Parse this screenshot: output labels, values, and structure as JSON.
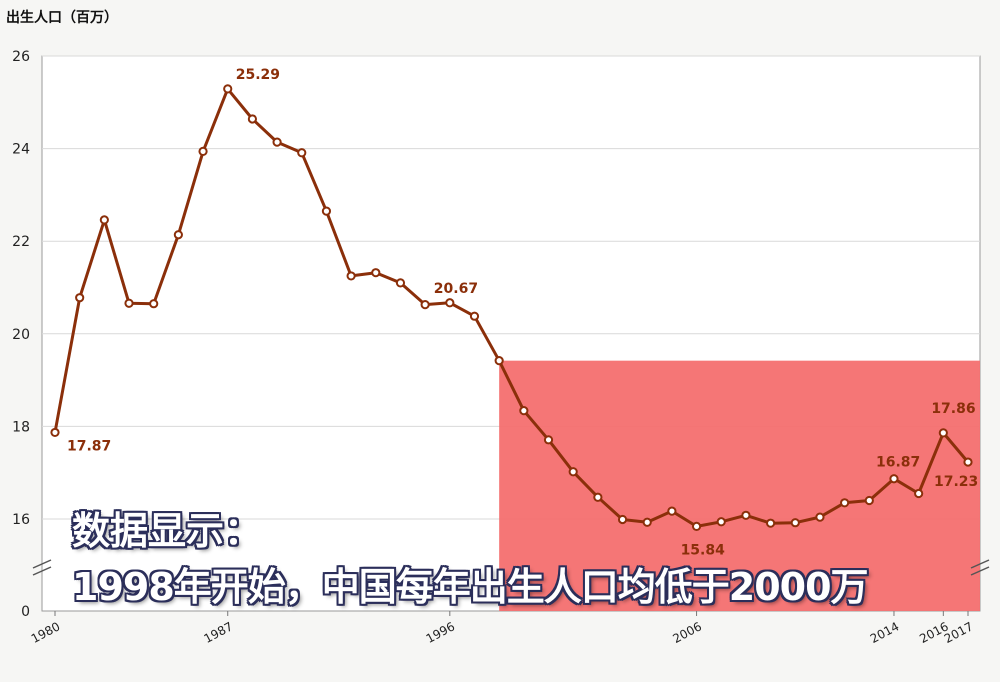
{
  "chart_data": {
    "type": "line",
    "ylabel": "出生人口（百万）",
    "xlabel": "",
    "x": [
      1980,
      1981,
      1982,
      1983,
      1984,
      1985,
      1986,
      1987,
      1988,
      1989,
      1990,
      1991,
      1992,
      1993,
      1994,
      1995,
      1996,
      1997,
      1998,
      1999,
      2000,
      2001,
      2002,
      2003,
      2004,
      2005,
      2006,
      2007,
      2008,
      2009,
      2010,
      2011,
      2012,
      2013,
      2014,
      2015,
      2016,
      2017
    ],
    "series": [
      {
        "values": [
          17.87,
          20.78,
          22.46,
          20.66,
          20.65,
          22.14,
          23.94,
          25.29,
          24.64,
          24.14,
          23.91,
          22.65,
          21.25,
          21.32,
          21.1,
          20.63,
          20.67,
          20.38,
          19.42,
          18.34,
          17.71,
          17.02,
          16.47,
          15.99,
          15.93,
          16.17,
          15.84,
          15.94,
          16.08,
          15.91,
          15.92,
          16.04,
          16.35,
          16.4,
          16.87,
          16.55,
          17.86,
          17.23
        ],
        "color": "#8b2f0a"
      }
    ],
    "x_ticks": [
      "1980",
      "1987",
      "1996",
      "2006",
      "2014",
      "2016",
      "2017"
    ],
    "y_ticks": [
      "0",
      "16",
      "18",
      "20",
      "22",
      "24",
      "26"
    ],
    "ylim": [
      16,
      26
    ],
    "y_axis_break": true,
    "point_labels": [
      {
        "x": 1980,
        "label": "17.87"
      },
      {
        "x": 1987,
        "label": "25.29"
      },
      {
        "x": 1996,
        "label": "20.67"
      },
      {
        "x": 2006,
        "label": "15.84"
      },
      {
        "x": 2014,
        "label": "16.87"
      },
      {
        "x": 2016,
        "label": "17.86"
      },
      {
        "x": 2017,
        "label": "17.23"
      }
    ],
    "highlight": {
      "x_start": 1998,
      "y_below": 19.42,
      "color": "#f46f6f"
    },
    "grid": true,
    "grid_color": "#d9d9d9"
  },
  "caption": {
    "line1": "数据显示：",
    "line2": "1998年开始，中国每年出生人口均低于2000万"
  }
}
